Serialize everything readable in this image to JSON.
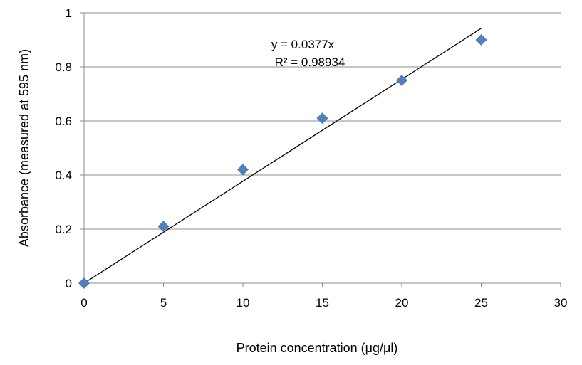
{
  "chart_data": {
    "type": "scatter",
    "title": "",
    "xlabel": "Protein concentration (μg/μl)",
    "ylabel": "Absorbance (measured at 595 nm)",
    "xlim": [
      0,
      30
    ],
    "ylim": [
      0,
      1
    ],
    "x_ticks": [
      "0",
      "5",
      "10",
      "15",
      "20",
      "25",
      "30"
    ],
    "y_ticks": [
      "0",
      "0.2",
      "0.4",
      "0.6",
      "0.8",
      "1"
    ],
    "grid": "horizontal",
    "legend": "none",
    "series": [
      {
        "marker": "diamond",
        "color": "#4f81bd",
        "x": [
          0,
          5,
          10,
          15,
          20,
          25
        ],
        "y": [
          0,
          0.21,
          0.42,
          0.61,
          0.75,
          0.9
        ]
      }
    ],
    "trendline": {
      "type": "linear",
      "slope": 0.0377,
      "intercept": 0,
      "x_end": 25,
      "color": "#000000"
    },
    "annotations": {
      "equation": "y = 0.0377x",
      "r_squared": "R² = 0.98934"
    }
  }
}
